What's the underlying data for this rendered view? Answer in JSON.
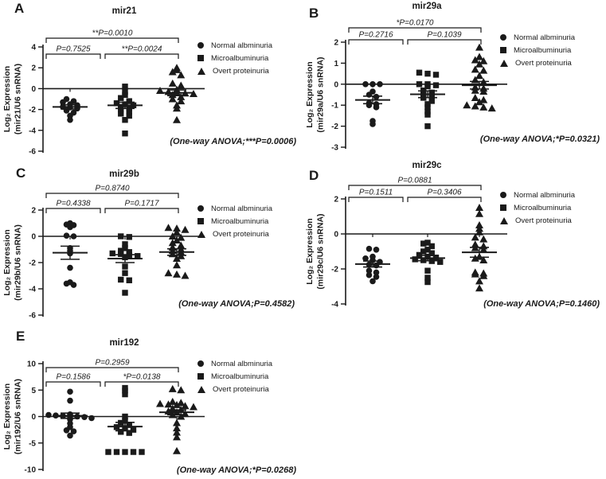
{
  "style": {
    "marker_color": "#1a1a1a",
    "axis_color": "#1a1a1a",
    "background": "#ffffff"
  },
  "chart_data": [
    {
      "type": "scatter",
      "panel": "A",
      "title": "mir21",
      "ylabel_line1": "Log₂ Expression",
      "ylabel_line2": "(mir21/U6 snRNA)",
      "ylim": [
        -6,
        4
      ],
      "yticks": [
        4,
        2,
        0,
        -2,
        -4,
        -6
      ],
      "anova": "(One-way ANOVA;***P=0.0006)",
      "comparisons": [
        {
          "groups": [
            0,
            2
          ],
          "label": "**P=0.0010",
          "level": 2
        },
        {
          "groups": [
            0,
            1
          ],
          "label": "P=0.7525",
          "level": 1
        },
        {
          "groups": [
            1,
            2
          ],
          "label": "**P=0.0024",
          "level": 1
        }
      ],
      "series": [
        {
          "name": "Normal albminuria",
          "marker": "circle",
          "mean": -1.75,
          "sem": 0.2,
          "values": [
            -1.0,
            -1.2,
            -1.3,
            -1.5,
            -1.6,
            -1.75,
            -1.8,
            -1.9,
            -2.1,
            -2.3,
            -2.6,
            -3.0
          ]
        },
        {
          "name": "Microalbuminuria",
          "marker": "square",
          "mean": -1.6,
          "sem": 0.3,
          "values": [
            0.2,
            -0.3,
            -0.6,
            -0.9,
            -1.2,
            -1.4,
            -1.5,
            -1.6,
            -1.75,
            -1.9,
            -2.0,
            -2.2,
            -2.4,
            -2.6,
            -3.0,
            -4.3
          ]
        },
        {
          "name": "Overt proteinuria",
          "marker": "triangle",
          "mean": -0.4,
          "sem": 0.27,
          "values": [
            2.0,
            1.8,
            1.6,
            1.3,
            0.5,
            0.3,
            -0.1,
            -0.2,
            -0.3,
            -0.35,
            -0.45,
            -0.5,
            -0.6,
            -0.8,
            -1.0,
            -1.2,
            -1.6,
            -1.9,
            -3.0
          ]
        }
      ]
    },
    {
      "type": "scatter",
      "panel": "B",
      "title": "mir29a",
      "ylabel_line1": "Log₂ Expression",
      "ylabel_line2": "(mir29a/U6 snRNA)",
      "ylim": [
        -3,
        2
      ],
      "yticks": [
        2,
        1,
        0,
        -1,
        -2,
        -3
      ],
      "anova": "(One-way ANOVA;*P=0.0321)",
      "comparisons": [
        {
          "groups": [
            0,
            2
          ],
          "label": "*P=0.0170",
          "level": 2
        },
        {
          "groups": [
            0,
            1
          ],
          "label": "P=0.2716",
          "level": 1
        },
        {
          "groups": [
            1,
            2
          ],
          "label": "P=0.1039",
          "level": 1
        }
      ],
      "series": [
        {
          "name": "Normal albminuria",
          "marker": "circle",
          "mean": -0.75,
          "sem": 0.18,
          "values": [
            0,
            0,
            0,
            -0.35,
            -0.5,
            -0.6,
            -0.9,
            -0.95,
            -1.0,
            -1.1,
            -1.75,
            -1.9
          ]
        },
        {
          "name": "Microalbuminuria",
          "marker": "square",
          "mean": -0.48,
          "sem": 0.16,
          "values": [
            0.55,
            0.5,
            0.45,
            0,
            0,
            -0.05,
            -0.1,
            -0.3,
            -0.4,
            -0.5,
            -0.55,
            -0.65,
            -0.8,
            -0.95,
            -1.1,
            -1.3,
            -1.45,
            -2.0
          ]
        },
        {
          "name": "Overt proteinuria",
          "marker": "triangle",
          "mean": -0.05,
          "sem": 0.18,
          "values": [
            1.75,
            1.3,
            1.15,
            1.1,
            0.95,
            0.7,
            0.65,
            0.4,
            0.2,
            0.1,
            -0.15,
            -0.2,
            -0.3,
            -0.35,
            -0.65,
            -0.75,
            -0.85,
            -1.0,
            -1.05,
            -1.1,
            -1.15
          ]
        }
      ]
    },
    {
      "type": "scatter",
      "panel": "C",
      "title": "mir29b",
      "ylabel_line1": "Log₂ Expression",
      "ylabel_line2": "(mir29b/U6 snRNA)",
      "ylim": [
        -6,
        2
      ],
      "yticks": [
        2,
        0,
        -2,
        -4,
        -6
      ],
      "anova": "(One-way ANOVA;P=0.4582)",
      "comparisons": [
        {
          "groups": [
            0,
            2
          ],
          "label": "P=0.8740",
          "level": 2
        },
        {
          "groups": [
            0,
            1
          ],
          "label": "P=0.4338",
          "level": 1
        },
        {
          "groups": [
            1,
            2
          ],
          "label": "P=0.1717",
          "level": 1
        }
      ],
      "series": [
        {
          "name": "Normal albminuria",
          "marker": "circle",
          "mean": -1.25,
          "sem": 0.5,
          "values": [
            1.0,
            0.9,
            0.85,
            0.7,
            0.05,
            0,
            -0.9,
            -1.1,
            -1.3,
            -2.4,
            -3.5,
            -3.6,
            -3.7
          ]
        },
        {
          "name": "Microalbuminuria",
          "marker": "square",
          "mean": -1.7,
          "sem": 0.3,
          "values": [
            0,
            -0.05,
            -0.6,
            -0.9,
            -1.1,
            -1.2,
            -1.3,
            -1.35,
            -1.45,
            -1.5,
            -1.6,
            -2.3,
            -2.8,
            -3.3,
            -3.35,
            -4.3
          ]
        },
        {
          "name": "Overt proteinuria",
          "marker": "triangle",
          "mean": -1.2,
          "sem": 0.25,
          "values": [
            0.65,
            0.6,
            0.5,
            0.3,
            0,
            -0.1,
            -0.3,
            -0.5,
            -0.7,
            -0.85,
            -1.0,
            -1.1,
            -1.2,
            -1.35,
            -1.5,
            -1.7,
            -2.2,
            -2.8,
            -2.9,
            -3.0
          ]
        }
      ]
    },
    {
      "type": "scatter",
      "panel": "D",
      "title": "mir29c",
      "ylabel_line1": "Log₂ Expression",
      "ylabel_line2": "(mir29c/U6 snRNA)",
      "ylim": [
        -4,
        2
      ],
      "yticks": [
        2,
        0,
        -2,
        -4
      ],
      "anova": "(One-way ANOVA;P=0.1460)",
      "comparisons": [
        {
          "groups": [
            0,
            2
          ],
          "label": "P=0.0881",
          "level": 2
        },
        {
          "groups": [
            0,
            1
          ],
          "label": "P=0.1511",
          "level": 1
        },
        {
          "groups": [
            1,
            2
          ],
          "label": "P=0.3406",
          "level": 1
        }
      ],
      "series": [
        {
          "name": "Normal albminuria",
          "marker": "circle",
          "mean": -1.72,
          "sem": 0.17,
          "values": [
            -0.85,
            -0.9,
            -1.3,
            -1.4,
            -1.5,
            -1.6,
            -1.75,
            -1.8,
            -2.1,
            -2.2,
            -2.35,
            -2.45,
            -2.7
          ]
        },
        {
          "name": "Microalbuminuria",
          "marker": "square",
          "mean": -1.38,
          "sem": 0.15,
          "values": [
            -0.5,
            -0.55,
            -0.7,
            -0.9,
            -1.0,
            -1.1,
            -1.2,
            -1.3,
            -1.35,
            -1.45,
            -1.5,
            -1.55,
            -1.6,
            -2.1,
            -2.5,
            -2.75
          ]
        },
        {
          "name": "Overt proteinuria",
          "marker": "triangle",
          "mean": -1.05,
          "sem": 0.28,
          "values": [
            1.5,
            1.15,
            0.5,
            0.3,
            0.1,
            -0.2,
            -0.3,
            -0.6,
            -0.7,
            -0.8,
            -0.9,
            -1.3,
            -1.4,
            -1.5,
            -2.2,
            -2.25,
            -2.3,
            -2.4,
            -2.7,
            -3.1
          ]
        }
      ]
    },
    {
      "type": "scatter",
      "panel": "E",
      "title": "mir192",
      "ylabel_line1": "Log₂ Expression",
      "ylabel_line2": "(mir192/U6 snRNA)",
      "ylim": [
        -10,
        10
      ],
      "yticks": [
        10,
        5,
        0,
        -5,
        -10
      ],
      "anova": "(One-way ANOVA;*P=0.0268)",
      "comparisons": [
        {
          "groups": [
            0,
            2
          ],
          "label": "P=0.2959",
          "level": 2
        },
        {
          "groups": [
            0,
            1
          ],
          "label": "P=0.1586",
          "level": 1
        },
        {
          "groups": [
            1,
            2
          ],
          "label": "*P=0.0138",
          "level": 1
        }
      ],
      "series": [
        {
          "name": "Normal albminuria",
          "marker": "circle",
          "mean": 0.15,
          "sem": 0.5,
          "values": [
            4.7,
            3.0,
            0.4,
            0.3,
            0.2,
            0.1,
            0,
            0,
            -0.1,
            -0.3,
            -0.5,
            -1.3,
            -2.0,
            -2.6,
            -2.8,
            -3.6
          ]
        },
        {
          "name": "Microalbuminuria",
          "marker": "square",
          "mean": -1.9,
          "sem": 0.8,
          "values": [
            5.4,
            4.9,
            4.2,
            0,
            -0.8,
            -1.2,
            -1.6,
            -2.0,
            -2.2,
            -2.5,
            -2.9,
            -3.1,
            -6.7,
            -6.7,
            -6.7,
            -6.7,
            -6.7
          ]
        },
        {
          "name": "Overt proteinuria",
          "marker": "triangle",
          "mean": 0.8,
          "sem": 0.45,
          "values": [
            5.2,
            5.0,
            2.8,
            2.6,
            2.4,
            2.3,
            2.2,
            2.0,
            1.8,
            1.5,
            1.3,
            1.0,
            0.8,
            0.5,
            0.3,
            0,
            -1.2,
            -2.2,
            -3.0,
            -3.9,
            -6.5
          ]
        }
      ]
    }
  ]
}
